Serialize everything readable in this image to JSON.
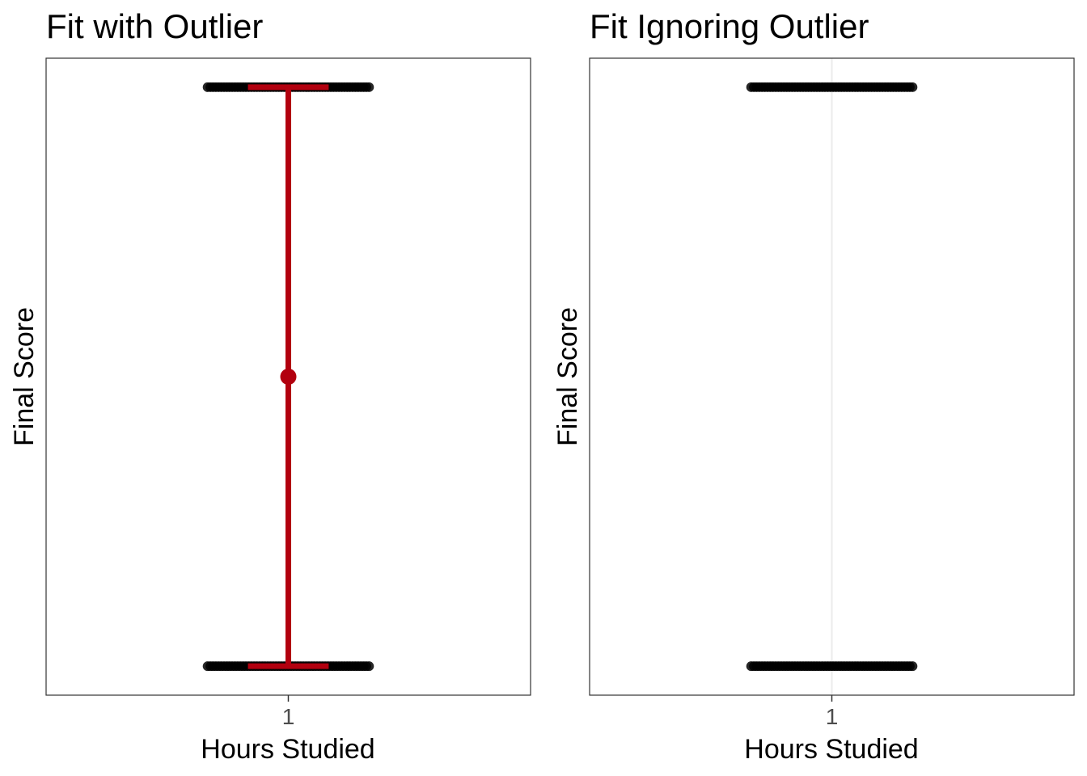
{
  "colors": {
    "points": "#000000",
    "fit": "#b2000f",
    "grid": "#ebebeb",
    "panel_border": "#333333"
  },
  "chart_data": [
    {
      "type": "scatter",
      "title": "Fit with Outlier",
      "xlabel": "Hours Studied",
      "ylabel": "Final Score",
      "x_ticks": [
        "1"
      ],
      "y_ticks": [],
      "xlim": [
        0.4,
        1.6
      ],
      "ylim": [
        -0.05,
        1.05
      ],
      "grid": false,
      "points": {
        "x_range": [
          0.8,
          1.2
        ],
        "y_levels": [
          0,
          1
        ]
      },
      "summary": {
        "x": 1,
        "mean": 0.5,
        "lower": 0,
        "upper": 1,
        "cap_halfwidth": 0.1
      }
    },
    {
      "type": "scatter",
      "title": "Fit Ignoring Outlier",
      "xlabel": "Hours Studied",
      "ylabel": "Final Score",
      "x_ticks": [
        "1"
      ],
      "y_ticks": [],
      "xlim": [
        0.4,
        1.6
      ],
      "ylim": [
        -0.05,
        1.05
      ],
      "grid": true,
      "points": {
        "x_range": [
          0.8,
          1.2
        ],
        "y_levels": [
          0,
          1
        ]
      }
    }
  ]
}
